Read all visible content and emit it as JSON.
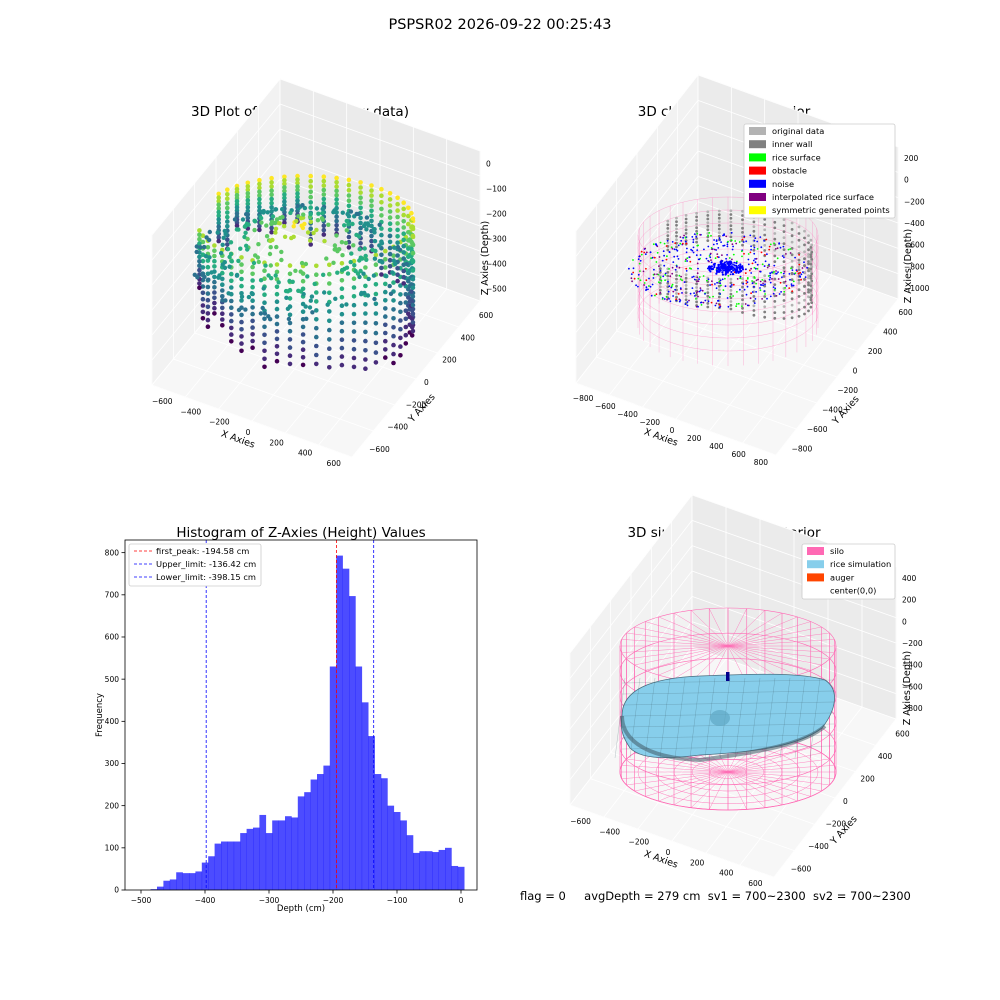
{
  "suptitle": "PSPSR02 2026-09-22 00:25:43",
  "footer": {
    "flag": "flag = 0",
    "avg_depth": "avgDepth = 279 cm",
    "sv1": "sv1 = 700~2300",
    "sv2": "sv2 = 700~2300"
  },
  "chart_data": [
    {
      "type": "scatter",
      "subtype": "3d",
      "title": "3D Plot of Silo Interior(row data)",
      "xlabel": "X Axies",
      "ylabel": "Y Axies",
      "zlabel": "Z Axies (Depth)",
      "xticks": [
        "−600",
        "−400",
        "−200",
        "0",
        "200",
        "400",
        "600"
      ],
      "yticks": [
        "600",
        "400",
        "200",
        "0",
        "−200",
        "−400",
        "−600"
      ],
      "zticks": [
        "0",
        "−100",
        "−200",
        "−300",
        "−400",
        "−500"
      ],
      "colormap": "viridis",
      "grid": true
    },
    {
      "type": "scatter",
      "subtype": "3d",
      "title": "3D classify of Silo Interior",
      "xlabel": "X Axies",
      "ylabel": "Y Axies",
      "zlabel": "Z Axies (Depth)",
      "xticks": [
        "−800",
        "−600",
        "−400",
        "−200",
        "0",
        "200",
        "400",
        "600",
        "800"
      ],
      "yticks": [
        "600",
        "400",
        "200",
        "0",
        "−200",
        "−400",
        "−600",
        "−800"
      ],
      "zticks": [
        "200",
        "0",
        "−200",
        "−400",
        "−600",
        "−800",
        "−1000"
      ],
      "legend": [
        {
          "label": "original data",
          "color": "#b3b3b3"
        },
        {
          "label": "inner wall",
          "color": "#808080"
        },
        {
          "label": "rice surface",
          "color": "#00ff00"
        },
        {
          "label": "obstacle",
          "color": "#ff0000"
        },
        {
          "label": "noise",
          "color": "#0000ff"
        },
        {
          "label": "interpolated rice surface",
          "color": "#800080"
        },
        {
          "label": "symmetric generated points",
          "color": "#ffff00"
        }
      ],
      "legend_position": "top-right",
      "grid": true
    },
    {
      "type": "bar",
      "subtype": "histogram",
      "title": "Histogram of Z-Axies (Height) Values",
      "xlabel": "Depth (cm)",
      "ylabel": "Frequency",
      "xlim": [
        -525,
        25
      ],
      "ylim": [
        0,
        830
      ],
      "xticks": [
        -500,
        -400,
        -300,
        -200,
        -100,
        0
      ],
      "yticks": [
        0,
        100,
        200,
        300,
        400,
        500,
        600,
        700,
        800
      ],
      "bin_start": -485,
      "bin_width": 10,
      "values": [
        2,
        8,
        22,
        25,
        42,
        40,
        40,
        44,
        65,
        80,
        110,
        115,
        115,
        115,
        135,
        145,
        148,
        178,
        135,
        165,
        165,
        175,
        172,
        222,
        232,
        262,
        275,
        295,
        530,
        793,
        762,
        697,
        530,
        445,
        365,
        275,
        265,
        200,
        185,
        165,
        130,
        88,
        92,
        92,
        90,
        95,
        100,
        57,
        55
      ],
      "bar_color": "#0000ff",
      "lines": [
        {
          "label": "first_peak: -194.58 cm",
          "value": -194.58,
          "color": "#ff0000"
        },
        {
          "label": "Upper_limit: -136.42 cm",
          "value": -136.42,
          "color": "#0000ff"
        },
        {
          "label": "Lower_limit: -398.15 cm",
          "value": -398.15,
          "color": "#0000ff"
        }
      ],
      "legend_position": "top-left",
      "grid": false
    },
    {
      "type": "area",
      "subtype": "3d-surface",
      "title": "3D simulation of Silo Interior",
      "xlabel": "X Axies",
      "ylabel": "Y Axies",
      "zlabel": "Z Axies (Depth)",
      "xticks": [
        "−600",
        "−400",
        "−200",
        "0",
        "200",
        "400",
        "600"
      ],
      "yticks": [
        "600",
        "400",
        "200",
        "0",
        "−200",
        "−400",
        "−600"
      ],
      "zticks": [
        "400",
        "200",
        "0",
        "−200",
        "−400",
        "−600",
        "−800"
      ],
      "legend": [
        {
          "label": "silo",
          "color": "#ff69b4"
        },
        {
          "label": "rice simulation",
          "color": "#87ceeb"
        },
        {
          "label": "auger",
          "color": "#ff4500"
        },
        {
          "label": "center(0,0)",
          "color": ""
        }
      ],
      "legend_position": "top-right",
      "grid": true
    }
  ]
}
